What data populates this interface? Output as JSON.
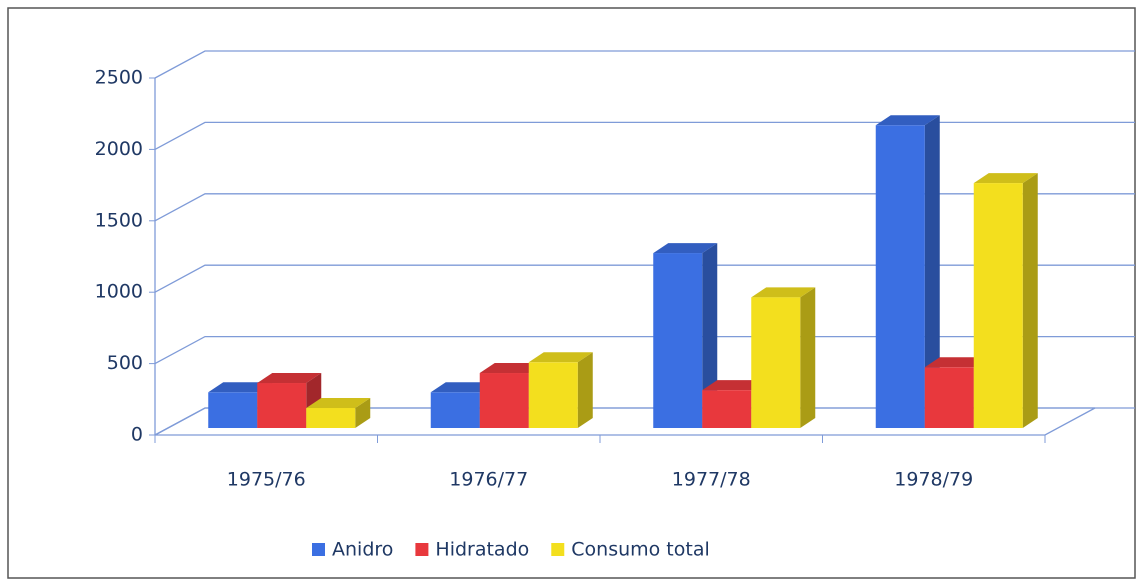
{
  "chart_data": {
    "type": "bar3d",
    "categories": [
      "1975/76",
      "1976/77",
      "1977/78",
      "1978/79"
    ],
    "series": [
      {
        "name": "Anidro",
        "color": "#3b6fe2",
        "values": [
          250,
          250,
          1225,
          2120
        ]
      },
      {
        "name": "Hidratado",
        "color": "#e8383d",
        "values": [
          315,
          385,
          265,
          425
        ]
      },
      {
        "name": "Consumo total",
        "color": "#f3df1e",
        "values": [
          140,
          460,
          915,
          1715
        ]
      }
    ],
    "ylim": [
      0,
      2500
    ],
    "yticks": [
      0,
      500,
      1000,
      1500,
      2000,
      2500
    ],
    "grid": true,
    "legend": "bottom"
  }
}
